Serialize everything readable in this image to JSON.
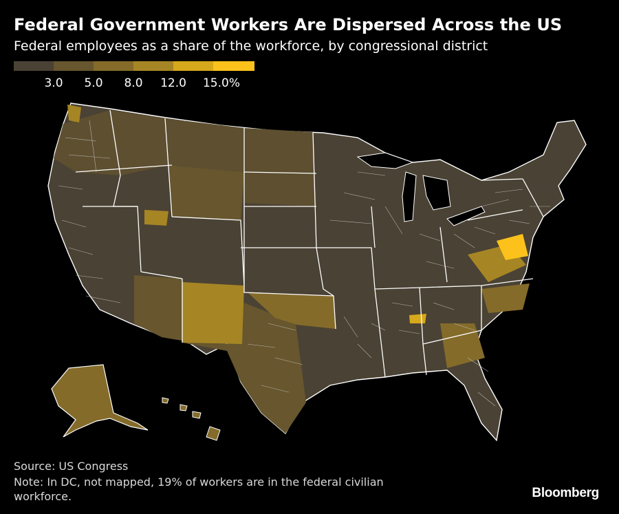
{
  "header": {
    "title": "Federal Government Workers Are Dispersed Across the US",
    "subtitle": "Federal employees as a share of the workforce, by congressional district"
  },
  "legend": {
    "colors": [
      "#4a4234",
      "#67562e",
      "#846b2a",
      "#a68524",
      "#d6a81c",
      "#fcc21b"
    ],
    "ticks": [
      "3.0",
      "5.0",
      "8.0",
      "12.0",
      "15.0%"
    ]
  },
  "map": {
    "background": "#000000",
    "border_color": "#ffffff",
    "highlighted_regions": [
      "Maryland",
      "Virginia",
      "Oklahoma",
      "New Mexico",
      "Alaska",
      "Hawaii"
    ]
  },
  "footer": {
    "source": "Source: US Congress",
    "note": "Note: In DC, not mapped, 19% of workers are in the federal civilian workforce.",
    "brand": "Bloomberg"
  }
}
